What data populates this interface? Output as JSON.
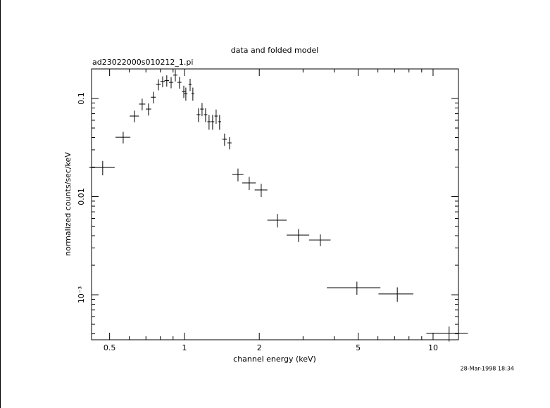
{
  "chart_data": {
    "type": "scatter",
    "title": "data and folded model",
    "subtitle": "ad23022000s010212_1.pi",
    "x_label": "channel energy (keV)",
    "y_label": "normalized counts/sec/keV",
    "timestamp": "28-Mar-1998 18:34",
    "xscale": "log",
    "yscale": "log",
    "color": "#000000",
    "xlim": [
      0.423,
      12.65
    ],
    "ylim": [
      0.000348,
      0.2
    ],
    "xticks": [
      0.5,
      1,
      2,
      5,
      10
    ],
    "xminorticks": [
      0.6,
      0.7,
      0.8,
      0.9,
      3,
      4,
      6,
      7,
      8,
      9
    ],
    "yticks": [
      0.1,
      0.01,
      {
        "value": 0.001,
        "label": "10⁻³"
      }
    ],
    "yminorticks": [
      0.2,
      0.09,
      0.08,
      0.07,
      0.06,
      0.05,
      0.04,
      0.03,
      0.02,
      0.009,
      0.008,
      0.007,
      0.006,
      0.005,
      0.004,
      0.003,
      0.002,
      0.0009,
      0.0008,
      0.0007,
      0.0006,
      0.0005,
      0.0004
    ],
    "series": [
      {
        "x": [
          0.469,
          0.567,
          0.629,
          0.676,
          0.717,
          0.75,
          0.786,
          0.817,
          0.849,
          0.884,
          0.919,
          0.955,
          0.994,
          1.013,
          1.054,
          1.081,
          1.139,
          1.177,
          1.216,
          1.256,
          1.298,
          1.341,
          1.385,
          1.45,
          1.518,
          1.642,
          1.822,
          2.036,
          2.366,
          2.876,
          3.52,
          4.94,
          7.18,
          11.6
        ],
        "xerr": [
          0.055,
          0.039,
          0.027,
          0.02,
          0.018,
          0.017,
          0.017,
          0.017,
          0.018,
          0.018,
          0.018,
          0.018,
          0.018,
          0.015,
          0.015,
          0.015,
          0.02,
          0.02,
          0.02,
          0.02,
          0.02,
          0.02,
          0.02,
          0.03,
          0.03,
          0.085,
          0.115,
          0.12,
          0.21,
          0.3,
          0.35,
          1.2,
          1.15,
          2.2
        ],
        "values": [
          0.0198,
          0.0403,
          0.0662,
          0.0877,
          0.078,
          0.103,
          0.139,
          0.149,
          0.152,
          0.146,
          0.173,
          0.146,
          0.118,
          0.112,
          0.139,
          0.112,
          0.0684,
          0.078,
          0.0684,
          0.058,
          0.058,
          0.0662,
          0.058,
          0.0384,
          0.0353,
          0.0168,
          0.0138,
          0.0117,
          0.00575,
          0.00406,
          0.00362,
          0.00118,
          0.00102,
          0.000404
        ],
        "yerr": [
          0.0033,
          0.0055,
          0.009,
          0.012,
          0.011,
          0.014,
          0.018,
          0.019,
          0.02,
          0.019,
          0.024,
          0.02,
          0.017,
          0.017,
          0.02,
          0.017,
          0.011,
          0.012,
          0.011,
          0.01,
          0.01,
          0.011,
          0.01,
          0.0055,
          0.005,
          0.0025,
          0.0021,
          0.0018,
          0.0009,
          0.0006,
          0.0005,
          0.00018,
          0.00017,
          7e-05
        ]
      }
    ]
  }
}
